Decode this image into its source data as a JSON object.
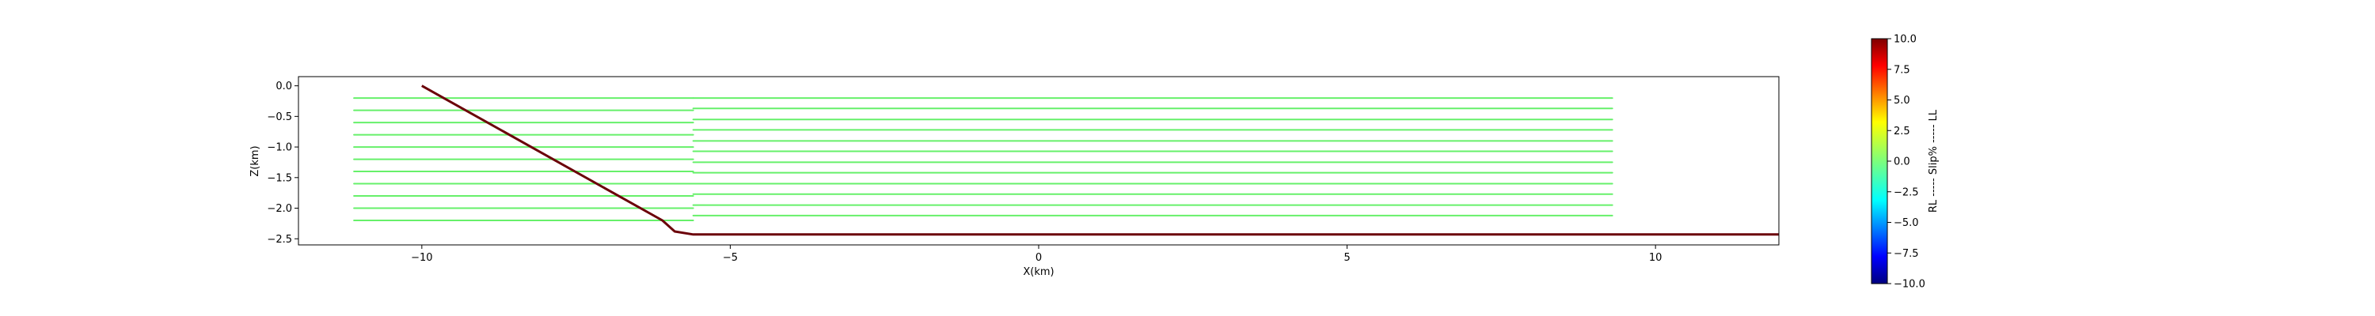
{
  "chart_data": {
    "type": "line",
    "xlabel": "X(km)",
    "ylabel": "Z(km)",
    "xlim": [
      -12,
      12
    ],
    "ylim": [
      -2.6,
      0.15
    ],
    "xticks": [
      -10,
      -5,
      0,
      5,
      10
    ],
    "yticks": [
      0.0,
      -0.5,
      -1.0,
      -1.5,
      -2.0,
      -2.5
    ],
    "xtick_labels": [
      "−10",
      "−5",
      "0",
      "5",
      "10"
    ],
    "ytick_labels": [
      "0.0",
      "−0.5",
      "−1.0",
      "−1.5",
      "−2.0",
      "−2.5"
    ],
    "grid": false,
    "fault": {
      "color": "#6b0008",
      "points": [
        [
          -10,
          0.0
        ],
        [
          -6.1,
          -2.2
        ],
        [
          -5.9,
          -2.38
        ],
        [
          -5.6,
          -2.43
        ],
        [
          12,
          -2.43
        ]
      ]
    },
    "streamline_groups": [
      {
        "x_start": -11.1,
        "x_end": -5.6,
        "z_values": [
          -0.2,
          -0.4,
          -0.6,
          -0.8,
          -1.0,
          -1.2,
          -1.4,
          -1.6,
          -1.8,
          -2.0,
          -2.2
        ],
        "value": 0.0,
        "color": "#66f06a"
      },
      {
        "x_start": -5.6,
        "x_end": 9.3,
        "z_values": [
          -0.2,
          -0.37,
          -0.55,
          -0.72,
          -0.9,
          -1.07,
          -1.25,
          -1.42,
          -1.6,
          -1.77,
          -1.95,
          -2.12
        ],
        "value": 0.0,
        "color": "#66f06a"
      }
    ],
    "colorbar": {
      "label": "RL ----- Slip% ----- LL",
      "colormap": "jet",
      "vmin": -10.0,
      "vmax": 10.0,
      "ticks": [
        10.0,
        7.5,
        5.0,
        2.5,
        0.0,
        -2.5,
        -5.0,
        -7.5,
        -10.0
      ],
      "tick_labels": [
        "10.0",
        "7.5",
        "5.0",
        "2.5",
        "0.0",
        "−2.5",
        "−5.0",
        "−7.5",
        "−10.0"
      ]
    }
  }
}
